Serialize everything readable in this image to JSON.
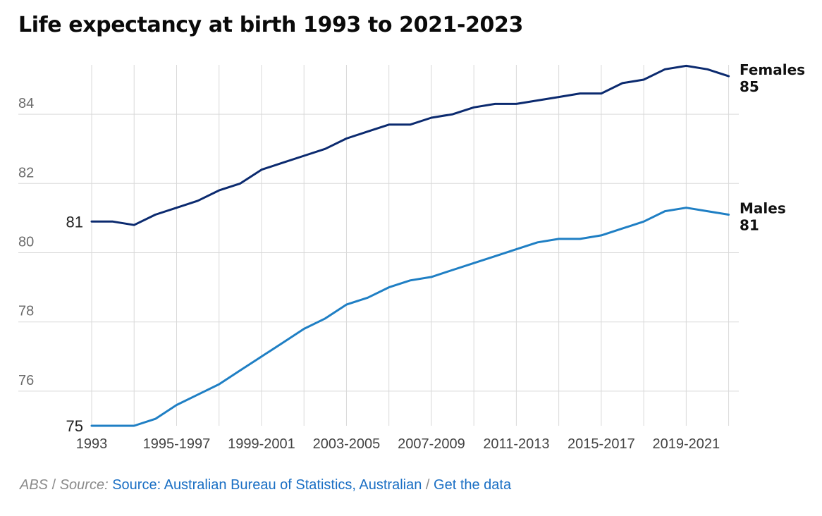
{
  "chart_data": {
    "type": "line",
    "title": "Life expectancy at birth 1993 to 2021-2023",
    "xlabel": "",
    "ylabel": "",
    "ylim": [
      75,
      85.5
    ],
    "y_ticks": [
      76,
      78,
      80,
      82,
      84
    ],
    "y_tick_labels": [
      "76",
      "78",
      "80",
      "82",
      "84"
    ],
    "x_tick_labels": [
      "1993",
      "1995-1997",
      "1999-2001",
      "2003-2005",
      "2007-2009",
      "2011-2013",
      "2015-2017",
      "2019-2021"
    ],
    "x_tick_indices": [
      0,
      4,
      8,
      12,
      16,
      20,
      24,
      28
    ],
    "grid": true,
    "series": [
      {
        "name": "Females",
        "end_label": "85",
        "start_label": "81",
        "color": "#0b2a6f",
        "values": [
          80.9,
          80.9,
          80.8,
          81.1,
          81.3,
          81.5,
          81.8,
          82.0,
          82.4,
          82.6,
          82.8,
          83.0,
          83.3,
          83.5,
          83.7,
          83.7,
          83.9,
          84.0,
          84.2,
          84.3,
          84.3,
          84.4,
          84.5,
          84.6,
          84.6,
          84.9,
          85.0,
          85.3,
          85.4,
          85.3,
          85.1
        ]
      },
      {
        "name": "Males",
        "end_label": "81",
        "start_label": "75",
        "color": "#1f7fc4",
        "values": [
          75.0,
          75.0,
          75.0,
          75.2,
          75.6,
          75.9,
          76.2,
          76.6,
          77.0,
          77.4,
          77.8,
          78.1,
          78.5,
          78.7,
          79.0,
          79.2,
          79.3,
          79.5,
          79.7,
          79.9,
          80.1,
          80.3,
          80.4,
          80.4,
          80.5,
          80.7,
          80.9,
          81.2,
          81.3,
          81.2,
          81.1
        ]
      }
    ]
  },
  "source": {
    "publisher": "ABS",
    "prefix": "Source:",
    "link_text": "Source: Australian Bureau of Statistics, Australian",
    "get_data_text": "Get the data",
    "separator": "/"
  }
}
